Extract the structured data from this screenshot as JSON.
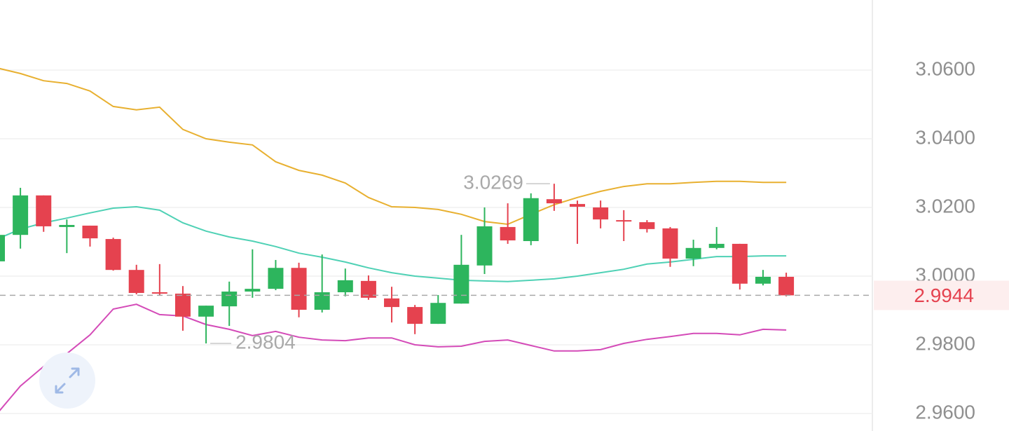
{
  "chart_data": {
    "type": "candlestick",
    "open": [
      3.0043,
      3.012,
      3.0235,
      3.0143,
      3.0147,
      3.0108,
      3.0018,
      2.9953,
      2.9949,
      2.9882,
      2.9912,
      2.9955,
      2.9963,
      3.0024,
      2.9902,
      2.9953,
      2.9986,
      2.9935,
      2.991,
      2.9861,
      2.992,
      3.0031,
      3.0143,
      3.0102,
      3.0224,
      3.021,
      3.02,
      3.0163,
      3.0157,
      3.0139,
      3.0051,
      3.0082,
      3.0094,
      2.9978,
      2.9998
    ],
    "high": [
      3.012,
      3.0257,
      3.0235,
      3.0165,
      3.0147,
      3.0112,
      3.0033,
      3.0035,
      2.9971,
      2.9914,
      2.9984,
      3.0078,
      3.0047,
      3.0039,
      3.0063,
      3.0022,
      3.0002,
      2.9969,
      2.9916,
      2.9945,
      3.012,
      3.02,
      3.0212,
      3.0241,
      3.0269,
      3.022,
      3.022,
      3.0192,
      3.0163,
      3.0143,
      3.0106,
      3.0143,
      3.0094,
      3.0018,
      3.001
    ],
    "low": [
      3.0043,
      3.008,
      3.0129,
      3.0067,
      3.0086,
      3.0016,
      2.9947,
      2.9943,
      2.9841,
      2.9804,
      2.9855,
      2.9937,
      2.9959,
      2.988,
      2.9894,
      2.9941,
      2.9931,
      2.9865,
      2.9831,
      2.9861,
      2.992,
      3.0006,
      3.0094,
      3.009,
      3.019,
      3.0094,
      3.0139,
      3.0102,
      3.0127,
      3.0027,
      3.0029,
      3.0078,
      2.9961,
      2.9973,
      2.9941
    ],
    "close": [
      3.012,
      3.0235,
      3.0145,
      3.0149,
      3.011,
      3.0018,
      2.9951,
      2.9949,
      2.9882,
      2.9914,
      2.9955,
      2.9963,
      3.0024,
      2.9902,
      2.9953,
      2.9988,
      2.9937,
      2.991,
      2.9861,
      2.9922,
      3.0033,
      3.0145,
      3.0104,
      3.0227,
      3.0212,
      3.0202,
      3.0165,
      3.0159,
      3.0137,
      3.0051,
      3.0082,
      3.0094,
      2.9978,
      2.9998,
      2.9944
    ],
    "up_color": "#2db55d",
    "down_color": "#e5424f",
    "lines": [
      {
        "color": "#e8b030",
        "values": [
          3.0606,
          3.059,
          3.0569,
          3.0561,
          3.0539,
          3.0494,
          3.0484,
          3.0492,
          3.0427,
          3.04,
          3.039,
          3.0382,
          3.0333,
          3.0308,
          3.0294,
          3.0271,
          3.0229,
          3.0202,
          3.02,
          3.0194,
          3.018,
          3.0159,
          3.0151,
          3.018,
          3.0208,
          3.0229,
          3.0247,
          3.0261,
          3.0269,
          3.0269,
          3.0273,
          3.0276,
          3.0276,
          3.0273,
          3.0273
        ]
      },
      {
        "color": "#4fd1b5",
        "values": [
          3.0108,
          3.0137,
          3.0155,
          3.0169,
          3.0184,
          3.0198,
          3.0202,
          3.0192,
          3.0155,
          3.0131,
          3.0114,
          3.0102,
          3.0086,
          3.0067,
          3.0055,
          3.0041,
          3.0024,
          3.001,
          3.0,
          2.9994,
          2.9988,
          2.9986,
          2.9984,
          2.9988,
          2.9992,
          3.0,
          3.001,
          3.002,
          3.0035,
          3.0041,
          3.0049,
          3.0057,
          3.0057,
          3.0059,
          3.0059
        ]
      },
      {
        "color": "#d44bb8",
        "values": [
          2.96,
          2.968,
          2.9737,
          2.9774,
          2.9829,
          2.9904,
          2.9918,
          2.9888,
          2.9884,
          2.9859,
          2.9845,
          2.9827,
          2.9839,
          2.9822,
          2.9814,
          2.9812,
          2.982,
          2.982,
          2.98,
          2.9794,
          2.9796,
          2.981,
          2.9814,
          2.9798,
          2.9782,
          2.9782,
          2.9786,
          2.9804,
          2.9816,
          2.9824,
          2.9833,
          2.9833,
          2.9829,
          2.9845,
          2.9843
        ]
      }
    ],
    "ylim": [
      2.9549,
      3.0804
    ],
    "yticks": [
      {
        "value": 2.96,
        "label": "2.9600"
      },
      {
        "value": 2.98,
        "label": "2.9800"
      },
      {
        "value": 3.0,
        "label": "3.0000"
      },
      {
        "value": 3.02,
        "label": "3.0200"
      },
      {
        "value": 3.04,
        "label": "3.0400"
      },
      {
        "value": 3.06,
        "label": "3.0600"
      }
    ],
    "grid": true
  }
}
